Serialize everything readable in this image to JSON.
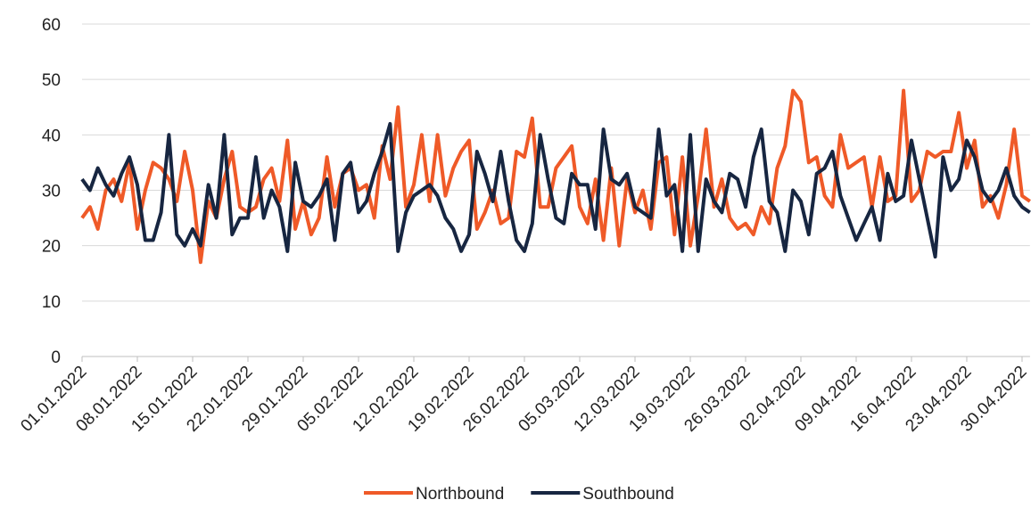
{
  "chart_data": {
    "type": "line",
    "categories": [
      "01.01.2022",
      null,
      null,
      null,
      null,
      null,
      null,
      "08.01.2022",
      null,
      null,
      null,
      null,
      null,
      null,
      "15.01.2022",
      null,
      null,
      null,
      null,
      null,
      null,
      "22.01.2022",
      null,
      null,
      null,
      null,
      null,
      null,
      "29.01.2022",
      null,
      null,
      null,
      null,
      null,
      null,
      "05.02.2022",
      null,
      null,
      null,
      null,
      null,
      null,
      "12.02.2022",
      null,
      null,
      null,
      null,
      null,
      null,
      "19.02.2022",
      null,
      null,
      null,
      null,
      null,
      null,
      "26.02.2022",
      null,
      null,
      null,
      null,
      null,
      null,
      "05.03.2022",
      null,
      null,
      null,
      null,
      null,
      null,
      "12.03.2022",
      null,
      null,
      null,
      null,
      null,
      null,
      "19.03.2022",
      null,
      null,
      null,
      null,
      null,
      null,
      "26.03.2022",
      null,
      null,
      null,
      null,
      null,
      null,
      "02.04.2022",
      null,
      null,
      null,
      null,
      null,
      null,
      "09.04.2022",
      null,
      null,
      null,
      null,
      null,
      null,
      "16.04.2022",
      null,
      null,
      null,
      null,
      null,
      null,
      "23.04.2022",
      null,
      null,
      null,
      null,
      null,
      null,
      "30.04.2022",
      null
    ],
    "series": [
      {
        "name": "Northbound",
        "color": "#ef5a28",
        "values": [
          25,
          27,
          23,
          30,
          32,
          28,
          35,
          23,
          30,
          35,
          34,
          32,
          28,
          37,
          30,
          17,
          28,
          25,
          32,
          37,
          27,
          26,
          27,
          32,
          34,
          28,
          39,
          23,
          28,
          22,
          25,
          36,
          27,
          33,
          34,
          30,
          31,
          25,
          38,
          32,
          45,
          27,
          31,
          40,
          28,
          40,
          29,
          34,
          37,
          39,
          23,
          26,
          30,
          24,
          25,
          37,
          36,
          43,
          27,
          27,
          34,
          36,
          38,
          27,
          24,
          32,
          21,
          34,
          20,
          32,
          26,
          30,
          23,
          35,
          36,
          22,
          36,
          20,
          29,
          41,
          27,
          32,
          25,
          23,
          24,
          22,
          27,
          24,
          34,
          38,
          48,
          46,
          35,
          36,
          29,
          27,
          40,
          34,
          35,
          36,
          27,
          36,
          28,
          29,
          48,
          28,
          30,
          37,
          36,
          37,
          37,
          44,
          34,
          39,
          27,
          29,
          25,
          31,
          41,
          29,
          28
        ]
      },
      {
        "name": "Southbound",
        "color": "#172641",
        "values": [
          32,
          30,
          34,
          31,
          29,
          33,
          36,
          31,
          21,
          21,
          26,
          40,
          22,
          20,
          23,
          20,
          31,
          25,
          40,
          22,
          25,
          25,
          36,
          25,
          30,
          27,
          19,
          35,
          28,
          27,
          29,
          32,
          21,
          33,
          35,
          26,
          28,
          33,
          37,
          42,
          19,
          26,
          29,
          30,
          31,
          29,
          25,
          23,
          19,
          22,
          37,
          33,
          28,
          37,
          28,
          21,
          19,
          24,
          40,
          32,
          25,
          24,
          33,
          31,
          31,
          23,
          41,
          32,
          31,
          33,
          27,
          26,
          25,
          41,
          29,
          31,
          19,
          40,
          19,
          32,
          28,
          26,
          33,
          32,
          27,
          36,
          41,
          28,
          26,
          19,
          30,
          28,
          22,
          33,
          34,
          37,
          29,
          25,
          21,
          24,
          27,
          21,
          33,
          28,
          29,
          39,
          32,
          25,
          18,
          36,
          30,
          32,
          39,
          36,
          30,
          28,
          30,
          34,
          29,
          27,
          26
        ]
      }
    ],
    "ylim": [
      0,
      60
    ],
    "yticks": [
      0,
      10,
      20,
      30,
      40,
      50,
      60
    ],
    "grid": true,
    "legend": "bottom"
  }
}
